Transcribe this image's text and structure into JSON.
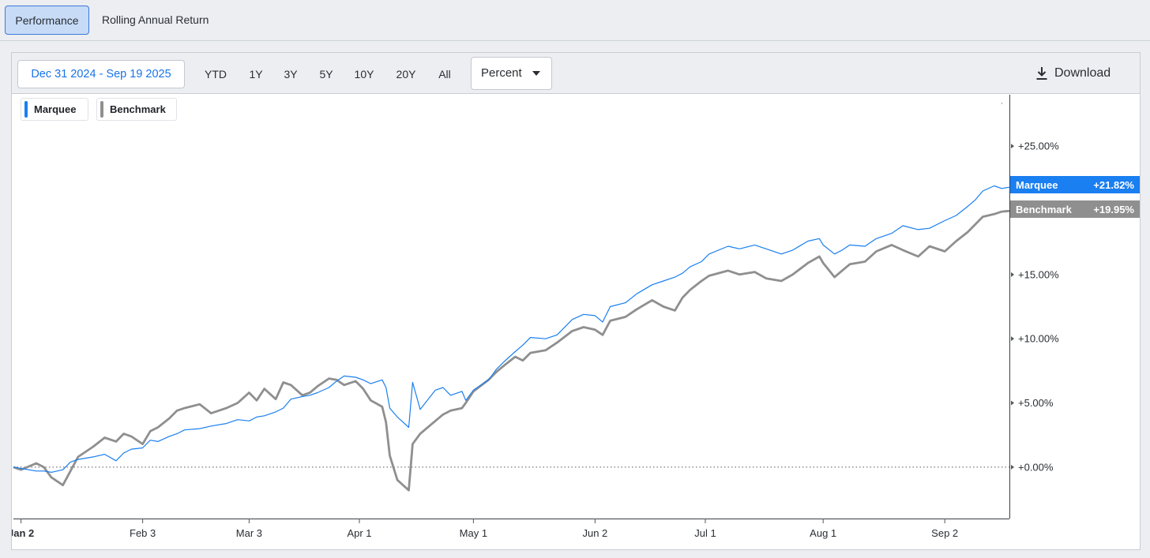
{
  "tabs": [
    {
      "label": "Performance",
      "active": true
    },
    {
      "label": "Rolling Annual Return",
      "active": false
    }
  ],
  "toolbar": {
    "date_range": "Dec 31 2024 - Sep 19 2025",
    "periods": [
      "YTD",
      "1Y",
      "3Y",
      "5Y",
      "10Y",
      "20Y",
      "All"
    ],
    "mode": "Percent",
    "download_label": "Download"
  },
  "chart_data": {
    "type": "line",
    "x_range": [
      "2024-12-31",
      "2025-09-19"
    ],
    "y_range": [
      -4,
      29
    ],
    "y_ticks": [
      0,
      5,
      10,
      15,
      20,
      25
    ],
    "y_tick_labels": [
      "+0.00%",
      "+5.00%",
      "+10.00%",
      "+15.00%",
      "+20.00%",
      "+25.00%"
    ],
    "x_ticks": [
      {
        "date": "2025-01-02",
        "label": "Jan 2"
      },
      {
        "date": "2025-02-03",
        "label": "Feb 3"
      },
      {
        "date": "2025-03-03",
        "label": "Mar 3"
      },
      {
        "date": "2025-04-01",
        "label": "Apr 1"
      },
      {
        "date": "2025-05-01",
        "label": "May 1"
      },
      {
        "date": "2025-06-02",
        "label": "Jun 2"
      },
      {
        "date": "2025-07-01",
        "label": "Jul 1"
      },
      {
        "date": "2025-08-01",
        "label": "Aug 1"
      },
      {
        "date": "2025-09-02",
        "label": "Sep 2"
      }
    ],
    "zero_line": "dotted",
    "series": [
      {
        "name": "Marquee",
        "color": "#1a7ff0",
        "last_label": "+21.82%",
        "points": [
          [
            "2024-12-31",
            0.0
          ],
          [
            "2025-01-02",
            -0.1
          ],
          [
            "2025-01-06",
            -0.3
          ],
          [
            "2025-01-08",
            -0.3
          ],
          [
            "2025-01-10",
            -0.4
          ],
          [
            "2025-01-13",
            -0.2
          ],
          [
            "2025-01-15",
            0.4
          ],
          [
            "2025-01-17",
            0.6
          ],
          [
            "2025-01-21",
            0.8
          ],
          [
            "2025-01-24",
            1.0
          ],
          [
            "2025-01-27",
            0.5
          ],
          [
            "2025-01-29",
            1.1
          ],
          [
            "2025-01-31",
            1.4
          ],
          [
            "2025-02-03",
            1.5
          ],
          [
            "2025-02-05",
            2.1
          ],
          [
            "2025-02-07",
            2.0
          ],
          [
            "2025-02-10",
            2.4
          ],
          [
            "2025-02-12",
            2.6
          ],
          [
            "2025-02-14",
            2.9
          ],
          [
            "2025-02-18",
            3.0
          ],
          [
            "2025-02-21",
            3.2
          ],
          [
            "2025-02-25",
            3.4
          ],
          [
            "2025-02-28",
            3.7
          ],
          [
            "2025-03-03",
            3.6
          ],
          [
            "2025-03-05",
            3.9
          ],
          [
            "2025-03-07",
            4.0
          ],
          [
            "2025-03-10",
            4.3
          ],
          [
            "2025-03-12",
            4.6
          ],
          [
            "2025-03-14",
            5.3
          ],
          [
            "2025-03-17",
            5.5
          ],
          [
            "2025-03-19",
            5.6
          ],
          [
            "2025-03-21",
            5.8
          ],
          [
            "2025-03-24",
            6.2
          ],
          [
            "2025-03-26",
            6.7
          ],
          [
            "2025-03-28",
            7.1
          ],
          [
            "2025-03-31",
            7.0
          ],
          [
            "2025-04-02",
            6.8
          ],
          [
            "2025-04-04",
            6.5
          ],
          [
            "2025-04-07",
            6.8
          ],
          [
            "2025-04-08",
            6.2
          ],
          [
            "2025-04-09",
            4.6
          ],
          [
            "2025-04-11",
            3.9
          ],
          [
            "2025-04-14",
            3.1
          ],
          [
            "2025-04-15",
            6.6
          ],
          [
            "2025-04-17",
            4.5
          ],
          [
            "2025-04-21",
            6.0
          ],
          [
            "2025-04-23",
            6.2
          ],
          [
            "2025-04-25",
            5.6
          ],
          [
            "2025-04-28",
            5.9
          ],
          [
            "2025-04-29",
            5.2
          ],
          [
            "2025-05-01",
            6.0
          ],
          [
            "2025-05-05",
            6.8
          ],
          [
            "2025-05-07",
            7.6
          ],
          [
            "2025-05-09",
            8.2
          ],
          [
            "2025-05-12",
            9.0
          ],
          [
            "2025-05-14",
            9.5
          ],
          [
            "2025-05-16",
            10.1
          ],
          [
            "2025-05-20",
            10.0
          ],
          [
            "2025-05-23",
            10.3
          ],
          [
            "2025-05-27",
            11.5
          ],
          [
            "2025-05-30",
            11.9
          ],
          [
            "2025-06-02",
            11.8
          ],
          [
            "2025-06-04",
            11.3
          ],
          [
            "2025-06-06",
            12.5
          ],
          [
            "2025-06-10",
            12.8
          ],
          [
            "2025-06-13",
            13.5
          ],
          [
            "2025-06-17",
            14.2
          ],
          [
            "2025-06-20",
            14.5
          ],
          [
            "2025-06-23",
            14.8
          ],
          [
            "2025-06-25",
            15.1
          ],
          [
            "2025-06-27",
            15.6
          ],
          [
            "2025-06-30",
            16.0
          ],
          [
            "2025-07-02",
            16.6
          ],
          [
            "2025-07-07",
            17.2
          ],
          [
            "2025-07-10",
            17.0
          ],
          [
            "2025-07-14",
            17.3
          ],
          [
            "2025-07-17",
            17.0
          ],
          [
            "2025-07-21",
            16.6
          ],
          [
            "2025-07-24",
            16.9
          ],
          [
            "2025-07-28",
            17.6
          ],
          [
            "2025-07-31",
            17.8
          ],
          [
            "2025-08-01",
            17.3
          ],
          [
            "2025-08-04",
            16.6
          ],
          [
            "2025-08-06",
            16.9
          ],
          [
            "2025-08-08",
            17.3
          ],
          [
            "2025-08-12",
            17.2
          ],
          [
            "2025-08-15",
            17.8
          ],
          [
            "2025-08-19",
            18.2
          ],
          [
            "2025-08-22",
            18.8
          ],
          [
            "2025-08-26",
            18.5
          ],
          [
            "2025-08-29",
            18.6
          ],
          [
            "2025-09-02",
            19.2
          ],
          [
            "2025-09-05",
            19.6
          ],
          [
            "2025-09-08",
            20.3
          ],
          [
            "2025-09-10",
            20.8
          ],
          [
            "2025-09-12",
            21.5
          ],
          [
            "2025-09-15",
            21.9
          ],
          [
            "2025-09-17",
            21.7
          ],
          [
            "2025-09-19",
            21.8
          ]
        ]
      },
      {
        "name": "Benchmark",
        "color": "#8f8f8f",
        "last_label": "+19.95%",
        "points": [
          [
            "2024-12-31",
            0.0
          ],
          [
            "2025-01-02",
            -0.2
          ],
          [
            "2025-01-06",
            0.3
          ],
          [
            "2025-01-08",
            0.0
          ],
          [
            "2025-01-10",
            -0.8
          ],
          [
            "2025-01-13",
            -1.4
          ],
          [
            "2025-01-15",
            -0.3
          ],
          [
            "2025-01-17",
            0.8
          ],
          [
            "2025-01-21",
            1.6
          ],
          [
            "2025-01-24",
            2.3
          ],
          [
            "2025-01-27",
            2.0
          ],
          [
            "2025-01-29",
            2.6
          ],
          [
            "2025-01-31",
            2.4
          ],
          [
            "2025-02-03",
            1.8
          ],
          [
            "2025-02-05",
            2.8
          ],
          [
            "2025-02-07",
            3.1
          ],
          [
            "2025-02-10",
            3.8
          ],
          [
            "2025-02-12",
            4.4
          ],
          [
            "2025-02-14",
            4.6
          ],
          [
            "2025-02-18",
            4.9
          ],
          [
            "2025-02-21",
            4.2
          ],
          [
            "2025-02-25",
            4.6
          ],
          [
            "2025-02-28",
            5.0
          ],
          [
            "2025-03-03",
            5.8
          ],
          [
            "2025-03-05",
            5.2
          ],
          [
            "2025-03-07",
            6.1
          ],
          [
            "2025-03-10",
            5.3
          ],
          [
            "2025-03-12",
            6.6
          ],
          [
            "2025-03-14",
            6.4
          ],
          [
            "2025-03-17",
            5.6
          ],
          [
            "2025-03-19",
            5.8
          ],
          [
            "2025-03-21",
            6.3
          ],
          [
            "2025-03-24",
            6.9
          ],
          [
            "2025-03-26",
            6.8
          ],
          [
            "2025-03-28",
            6.4
          ],
          [
            "2025-03-31",
            6.7
          ],
          [
            "2025-04-02",
            6.1
          ],
          [
            "2025-04-04",
            5.2
          ],
          [
            "2025-04-07",
            4.7
          ],
          [
            "2025-04-08",
            3.5
          ],
          [
            "2025-04-09",
            0.9
          ],
          [
            "2025-04-11",
            -1.0
          ],
          [
            "2025-04-14",
            -1.8
          ],
          [
            "2025-04-15",
            1.8
          ],
          [
            "2025-04-17",
            2.6
          ],
          [
            "2025-04-21",
            3.6
          ],
          [
            "2025-04-23",
            4.1
          ],
          [
            "2025-04-25",
            4.4
          ],
          [
            "2025-04-28",
            4.6
          ],
          [
            "2025-04-29",
            5.0
          ],
          [
            "2025-05-01",
            5.9
          ],
          [
            "2025-05-05",
            6.8
          ],
          [
            "2025-05-07",
            7.4
          ],
          [
            "2025-05-09",
            7.9
          ],
          [
            "2025-05-12",
            8.6
          ],
          [
            "2025-05-14",
            8.3
          ],
          [
            "2025-05-16",
            8.9
          ],
          [
            "2025-05-20",
            9.1
          ],
          [
            "2025-05-23",
            9.7
          ],
          [
            "2025-05-27",
            10.6
          ],
          [
            "2025-05-30",
            10.9
          ],
          [
            "2025-06-02",
            10.7
          ],
          [
            "2025-06-04",
            10.3
          ],
          [
            "2025-06-06",
            11.4
          ],
          [
            "2025-06-10",
            11.7
          ],
          [
            "2025-06-13",
            12.3
          ],
          [
            "2025-06-17",
            13.0
          ],
          [
            "2025-06-20",
            12.5
          ],
          [
            "2025-06-23",
            12.2
          ],
          [
            "2025-06-25",
            13.2
          ],
          [
            "2025-06-27",
            13.8
          ],
          [
            "2025-06-30",
            14.5
          ],
          [
            "2025-07-02",
            14.9
          ],
          [
            "2025-07-07",
            15.3
          ],
          [
            "2025-07-10",
            15.0
          ],
          [
            "2025-07-14",
            15.2
          ],
          [
            "2025-07-17",
            14.7
          ],
          [
            "2025-07-21",
            14.5
          ],
          [
            "2025-07-24",
            15.0
          ],
          [
            "2025-07-28",
            15.9
          ],
          [
            "2025-07-31",
            16.4
          ],
          [
            "2025-08-01",
            15.9
          ],
          [
            "2025-08-04",
            14.8
          ],
          [
            "2025-08-06",
            15.3
          ],
          [
            "2025-08-08",
            15.8
          ],
          [
            "2025-08-12",
            16.0
          ],
          [
            "2025-08-15",
            16.8
          ],
          [
            "2025-08-19",
            17.3
          ],
          [
            "2025-08-22",
            16.9
          ],
          [
            "2025-08-26",
            16.4
          ],
          [
            "2025-08-29",
            17.2
          ],
          [
            "2025-09-02",
            16.8
          ],
          [
            "2025-09-05",
            17.6
          ],
          [
            "2025-09-08",
            18.3
          ],
          [
            "2025-09-10",
            18.9
          ],
          [
            "2025-09-12",
            19.5
          ],
          [
            "2025-09-15",
            19.7
          ],
          [
            "2025-09-17",
            19.9
          ],
          [
            "2025-09-19",
            19.95
          ]
        ]
      }
    ]
  }
}
